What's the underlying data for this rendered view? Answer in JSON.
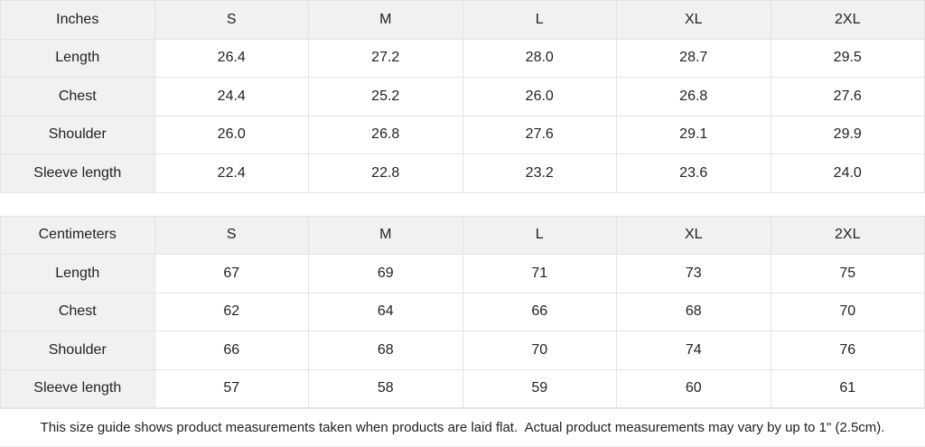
{
  "tables": [
    {
      "unit": "Inches",
      "sizes": [
        "S",
        "M",
        "L",
        "XL",
        "2XL"
      ],
      "rows": [
        {
          "label": "Length",
          "values": [
            "26.4",
            "27.2",
            "28.0",
            "28.7",
            "29.5"
          ]
        },
        {
          "label": "Chest",
          "values": [
            "24.4",
            "25.2",
            "26.0",
            "26.8",
            "27.6"
          ]
        },
        {
          "label": "Shoulder",
          "values": [
            "26.0",
            "26.8",
            "27.6",
            "29.1",
            "29.9"
          ]
        },
        {
          "label": "Sleeve length",
          "values": [
            "22.4",
            "22.8",
            "23.2",
            "23.6",
            "24.0"
          ]
        }
      ]
    },
    {
      "unit": "Centimeters",
      "sizes": [
        "S",
        "M",
        "L",
        "XL",
        "2XL"
      ],
      "rows": [
        {
          "label": "Length",
          "values": [
            "67",
            "69",
            "71",
            "73",
            "75"
          ]
        },
        {
          "label": "Chest",
          "values": [
            "62",
            "64",
            "66",
            "68",
            "70"
          ]
        },
        {
          "label": "Shoulder",
          "values": [
            "66",
            "68",
            "70",
            "74",
            "76"
          ]
        },
        {
          "label": "Sleeve length",
          "values": [
            "57",
            "58",
            "59",
            "60",
            "61"
          ]
        }
      ]
    }
  ],
  "footer": {
    "note": "This size guide shows product measurements taken when products are laid flat.  Actual product measurements may vary by up to 1\" (2.5cm)."
  },
  "colors": {
    "header_bg": "#f1f1f1",
    "cell_bg": "#ffffff",
    "border": "#e3e3e3",
    "text": "#222222"
  }
}
